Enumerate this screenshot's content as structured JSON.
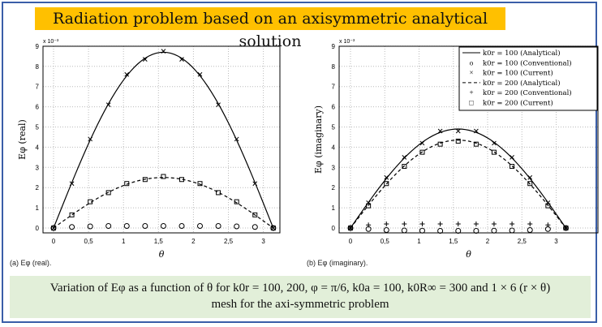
{
  "title": "Radiation problem based on an axisymmetric analytical solution",
  "caption_line1": "Variation of Eφ as a function of θ for k0r = 100, 200, φ = π/6, k0a = 100, k0R∞ = 300 and 1 × 6 (r × θ)",
  "caption_line2": "mesh for the axi-symmetric problem",
  "colors": {
    "title_bg": "#ffc000",
    "caption_bg": "#e2efd9",
    "frame": "#3a5ea8"
  },
  "chart_data": [
    {
      "type": "line",
      "subcaption": "(a) Eφ (real).",
      "ylabel": "Eφ (real)",
      "xlabel": "θ",
      "yscale_label": "x 10⁻³",
      "xlim": [
        -0.15,
        3.25
      ],
      "ylim": [
        -0.3,
        9
      ],
      "xticks": [
        "0",
        "0.5",
        "1",
        "1.5",
        "2",
        "2.5",
        "3"
      ],
      "yticks": [
        "0",
        "1",
        "2",
        "3",
        "4",
        "5",
        "6",
        "7",
        "8",
        "9"
      ],
      "grid": true,
      "x": [
        0,
        0.262,
        0.524,
        0.785,
        1.047,
        1.309,
        1.571,
        1.833,
        2.094,
        2.356,
        2.618,
        2.88,
        3.142
      ],
      "series": [
        {
          "name": "k0r = 100 (Analytical)",
          "style": "solid",
          "values": [
            0,
            2.25,
            4.35,
            6.15,
            7.55,
            8.4,
            8.7,
            8.4,
            7.55,
            6.15,
            4.35,
            2.25,
            0
          ]
        },
        {
          "name": "k0r = 100 (Conventional)",
          "style": "circle",
          "values": [
            0,
            0.05,
            0.08,
            0.1,
            0.1,
            0.1,
            0.1,
            0.1,
            0.1,
            0.1,
            0.08,
            0.05,
            0
          ]
        },
        {
          "name": "k0r = 100 (Current)",
          "style": "x",
          "values": [
            0,
            2.2,
            4.4,
            6.1,
            7.6,
            8.35,
            8.75,
            8.35,
            7.6,
            6.1,
            4.4,
            2.2,
            0
          ]
        },
        {
          "name": "k0r = 200 (Analytical)",
          "style": "dashed",
          "values": [
            0,
            0.65,
            1.25,
            1.77,
            2.17,
            2.42,
            2.5,
            2.42,
            2.17,
            1.77,
            1.25,
            0.65,
            0
          ]
        },
        {
          "name": "k0r = 200 (Current)",
          "style": "square",
          "values": [
            0,
            0.65,
            1.3,
            1.75,
            2.2,
            2.4,
            2.55,
            2.4,
            2.2,
            1.75,
            1.3,
            0.65,
            0
          ]
        }
      ]
    },
    {
      "type": "line",
      "subcaption": "(b) Eφ (imaginary).",
      "ylabel": "Eφ (imaginary)",
      "xlabel": "θ",
      "yscale_label": "x 10⁻³",
      "xlim": [
        -0.15,
        3.25
      ],
      "ylim": [
        -0.3,
        9
      ],
      "xticks": [
        "0",
        "0.5",
        "1",
        "1.5",
        "2",
        "2.5",
        "3"
      ],
      "yticks": [
        "0",
        "1",
        "2",
        "3",
        "4",
        "5",
        "6",
        "7",
        "8",
        "9"
      ],
      "grid": true,
      "legend": "top-right",
      "x": [
        0,
        0.262,
        0.524,
        0.785,
        1.047,
        1.309,
        1.571,
        1.833,
        2.094,
        2.356,
        2.618,
        2.88,
        3.142
      ],
      "series": [
        {
          "name": "k0r = 100 (Analytical)",
          "style": "solid",
          "values": [
            0,
            1.27,
            2.45,
            3.47,
            4.25,
            4.73,
            4.9,
            4.73,
            4.25,
            3.47,
            2.45,
            1.27,
            0
          ]
        },
        {
          "name": "k0r = 100 (Conventional)",
          "style": "circle",
          "values": [
            0,
            -0.05,
            -0.1,
            -0.12,
            -0.13,
            -0.14,
            -0.14,
            -0.14,
            -0.13,
            -0.12,
            -0.1,
            -0.05,
            0
          ]
        },
        {
          "name": "k0r = 100 (Current)",
          "style": "x",
          "values": [
            0,
            1.25,
            2.5,
            3.5,
            4.2,
            4.8,
            4.8,
            4.8,
            4.2,
            3.5,
            2.5,
            1.25,
            0
          ]
        },
        {
          "name": "k0r = 200 (Analytical)",
          "style": "dashed",
          "values": [
            0,
            1.12,
            2.17,
            3.07,
            3.76,
            4.2,
            4.35,
            4.2,
            3.76,
            3.07,
            2.17,
            1.12,
            0
          ]
        },
        {
          "name": "k0r = 200 (Conventional)",
          "style": "plus",
          "values": [
            0,
            0.15,
            0.2,
            0.2,
            0.2,
            0.2,
            0.2,
            0.2,
            0.2,
            0.2,
            0.2,
            0.15,
            0
          ]
        },
        {
          "name": "k0r = 200 (Current)",
          "style": "square",
          "values": [
            0,
            1.1,
            2.2,
            3.05,
            3.75,
            4.15,
            4.3,
            4.15,
            3.75,
            3.05,
            2.2,
            1.1,
            0
          ]
        }
      ]
    }
  ]
}
